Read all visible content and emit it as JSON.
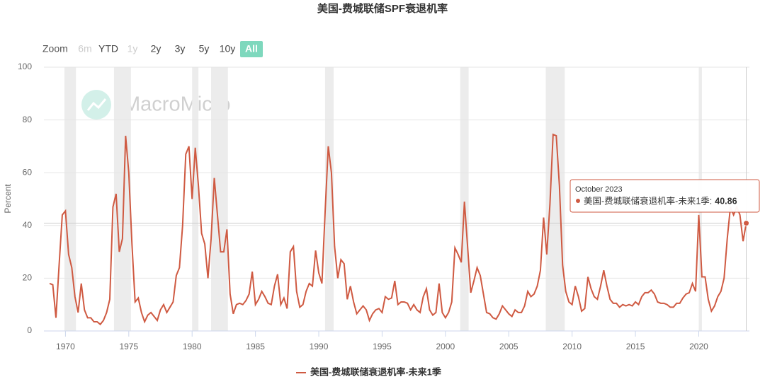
{
  "chart_data": {
    "type": "line",
    "title": "美国-费城联储SPF衰退机率",
    "y_label": "Percent",
    "watermark": "MacroMicro",
    "range_selector": {
      "label": "Zoom",
      "buttons": [
        "6m",
        "YTD",
        "1y",
        "2y",
        "3y",
        "5y",
        "10y",
        "All"
      ],
      "selected_index": 7,
      "disabled_indices": [
        0,
        2
      ]
    },
    "x": [
      1968.75,
      1969,
      1969.25,
      1969.5,
      1969.75,
      1970,
      1970.25,
      1970.5,
      1970.75,
      1971,
      1971.25,
      1971.5,
      1971.75,
      1972,
      1972.25,
      1972.5,
      1972.75,
      1973,
      1973.25,
      1973.5,
      1973.75,
      1974,
      1974.25,
      1974.5,
      1974.75,
      1975,
      1975.25,
      1975.5,
      1975.75,
      1976,
      1976.25,
      1976.5,
      1976.75,
      1977,
      1977.25,
      1977.5,
      1977.75,
      1978,
      1978.25,
      1978.5,
      1978.75,
      1979,
      1979.25,
      1979.5,
      1979.75,
      1980,
      1980.25,
      1980.5,
      1980.75,
      1981,
      1981.25,
      1981.5,
      1981.75,
      1982,
      1982.25,
      1982.5,
      1982.75,
      1983,
      1983.25,
      1983.5,
      1983.75,
      1984,
      1984.25,
      1984.5,
      1984.75,
      1985,
      1985.25,
      1985.5,
      1985.75,
      1986,
      1986.25,
      1986.5,
      1986.75,
      1987,
      1987.25,
      1987.5,
      1987.75,
      1988,
      1988.25,
      1988.5,
      1988.75,
      1989,
      1989.25,
      1989.5,
      1989.75,
      1990,
      1990.25,
      1990.5,
      1990.75,
      1991,
      1991.25,
      1991.5,
      1991.75,
      1992,
      1992.25,
      1992.5,
      1992.75,
      1993,
      1993.25,
      1993.5,
      1993.75,
      1994,
      1994.25,
      1994.5,
      1994.75,
      1995,
      1995.25,
      1995.5,
      1995.75,
      1996,
      1996.25,
      1996.5,
      1996.75,
      1997,
      1997.25,
      1997.5,
      1997.75,
      1998,
      1998.25,
      1998.5,
      1998.75,
      1999,
      1999.25,
      1999.5,
      1999.75,
      2000,
      2000.25,
      2000.5,
      2000.75,
      2001,
      2001.25,
      2001.5,
      2001.75,
      2002,
      2002.25,
      2002.5,
      2002.75,
      2003,
      2003.25,
      2003.5,
      2003.75,
      2004,
      2004.25,
      2004.5,
      2004.75,
      2005,
      2005.25,
      2005.5,
      2005.75,
      2006,
      2006.25,
      2006.5,
      2006.75,
      2007,
      2007.25,
      2007.5,
      2007.75,
      2008,
      2008.25,
      2008.5,
      2008.75,
      2009,
      2009.25,
      2009.5,
      2009.75,
      2010,
      2010.25,
      2010.5,
      2010.75,
      2011,
      2011.25,
      2011.5,
      2011.75,
      2012,
      2012.25,
      2012.5,
      2012.75,
      2013,
      2013.25,
      2013.5,
      2013.75,
      2014,
      2014.25,
      2014.5,
      2014.75,
      2015,
      2015.25,
      2015.5,
      2015.75,
      2016,
      2016.25,
      2016.5,
      2016.75,
      2017,
      2017.25,
      2017.5,
      2017.75,
      2018,
      2018.25,
      2018.5,
      2018.75,
      2019,
      2019.25,
      2019.5,
      2019.75,
      2020,
      2020.25,
      2020.5,
      2020.75,
      2021,
      2021.25,
      2021.5,
      2021.75,
      2022,
      2022.25,
      2022.5,
      2022.75,
      2023,
      2023.25,
      2023.5,
      2023.75
    ],
    "series": [
      {
        "name": "美国-费城联储衰退机率-未来1季",
        "color": "#cf5a42",
        "values": [
          18,
          17.5,
          5,
          25,
          44,
          45.5,
          29,
          24,
          13,
          7,
          18,
          8,
          5,
          5,
          3.5,
          3.5,
          2.5,
          4,
          7,
          12,
          47,
          52,
          30,
          35,
          74,
          60,
          33,
          11,
          12.5,
          7,
          3.5,
          6,
          7,
          5.5,
          4,
          8,
          10,
          7,
          9,
          11,
          21,
          24,
          40,
          67,
          70,
          50,
          69.5,
          55,
          37,
          33,
          20,
          35,
          58,
          44,
          30,
          30,
          38.5,
          14,
          6.5,
          10,
          10.5,
          10,
          11.5,
          14,
          22.5,
          10,
          12,
          15,
          13,
          10.5,
          10,
          17,
          21.5,
          10,
          12.5,
          8.5,
          30,
          32,
          15,
          9,
          10,
          15,
          18,
          17,
          30.5,
          22,
          18,
          45,
          70,
          60,
          32,
          20,
          27,
          25.5,
          12,
          17,
          11,
          6.5,
          8,
          9.5,
          8,
          4,
          6.5,
          8,
          8.5,
          7,
          13,
          12,
          12.5,
          19,
          10,
          11,
          11,
          10.5,
          8,
          10,
          8,
          7,
          13,
          16,
          8,
          6,
          7,
          18,
          7,
          5,
          7,
          11,
          31.5,
          29,
          26,
          49,
          32,
          14.5,
          19,
          24,
          21,
          14,
          7,
          6.5,
          5,
          4.5,
          6.5,
          9.5,
          8,
          6.5,
          5.5,
          8,
          7,
          7,
          9.5,
          15,
          13,
          14,
          17,
          23,
          43,
          29,
          48,
          74.5,
          74,
          55,
          25,
          15,
          11,
          10,
          17,
          13,
          7.5,
          8.5,
          20.5,
          16,
          13,
          12,
          17,
          23,
          17,
          12,
          10.5,
          10.5,
          9,
          10,
          9.5,
          10,
          9.5,
          11,
          10,
          13,
          14.5,
          14.5,
          15.5,
          14,
          11,
          10.5,
          10.5,
          10,
          9,
          9,
          10.5,
          10.5,
          12.5,
          14,
          14.5,
          18,
          15,
          44,
          20.5,
          20.5,
          12,
          7.5,
          9.5,
          13,
          15,
          20,
          35,
          47,
          44,
          47,
          44,
          34,
          40.86
        ]
      }
    ],
    "recessions": [
      [
        1969.92,
        1970.83
      ],
      [
        1973.83,
        1975.17
      ],
      [
        1980.0,
        1980.5
      ],
      [
        1981.5,
        1982.83
      ],
      [
        1990.5,
        1991.17
      ],
      [
        2001.17,
        2001.83
      ],
      [
        2007.92,
        2009.42
      ],
      [
        2020.0,
        2020.25
      ]
    ],
    "xlim": [
      1968.3,
      2024.0
    ],
    "xticks": [
      1970,
      1975,
      1980,
      1985,
      1990,
      1995,
      2000,
      2005,
      2010,
      2015,
      2020
    ],
    "ylim": [
      0,
      100
    ],
    "yticks": [
      0,
      20,
      40,
      60,
      80,
      100
    ],
    "grid": true,
    "tooltip": {
      "title": "October 2023",
      "label": "美国-费城联储衰退机率-未来1季:",
      "value": 40.86,
      "point_index": 220
    }
  }
}
